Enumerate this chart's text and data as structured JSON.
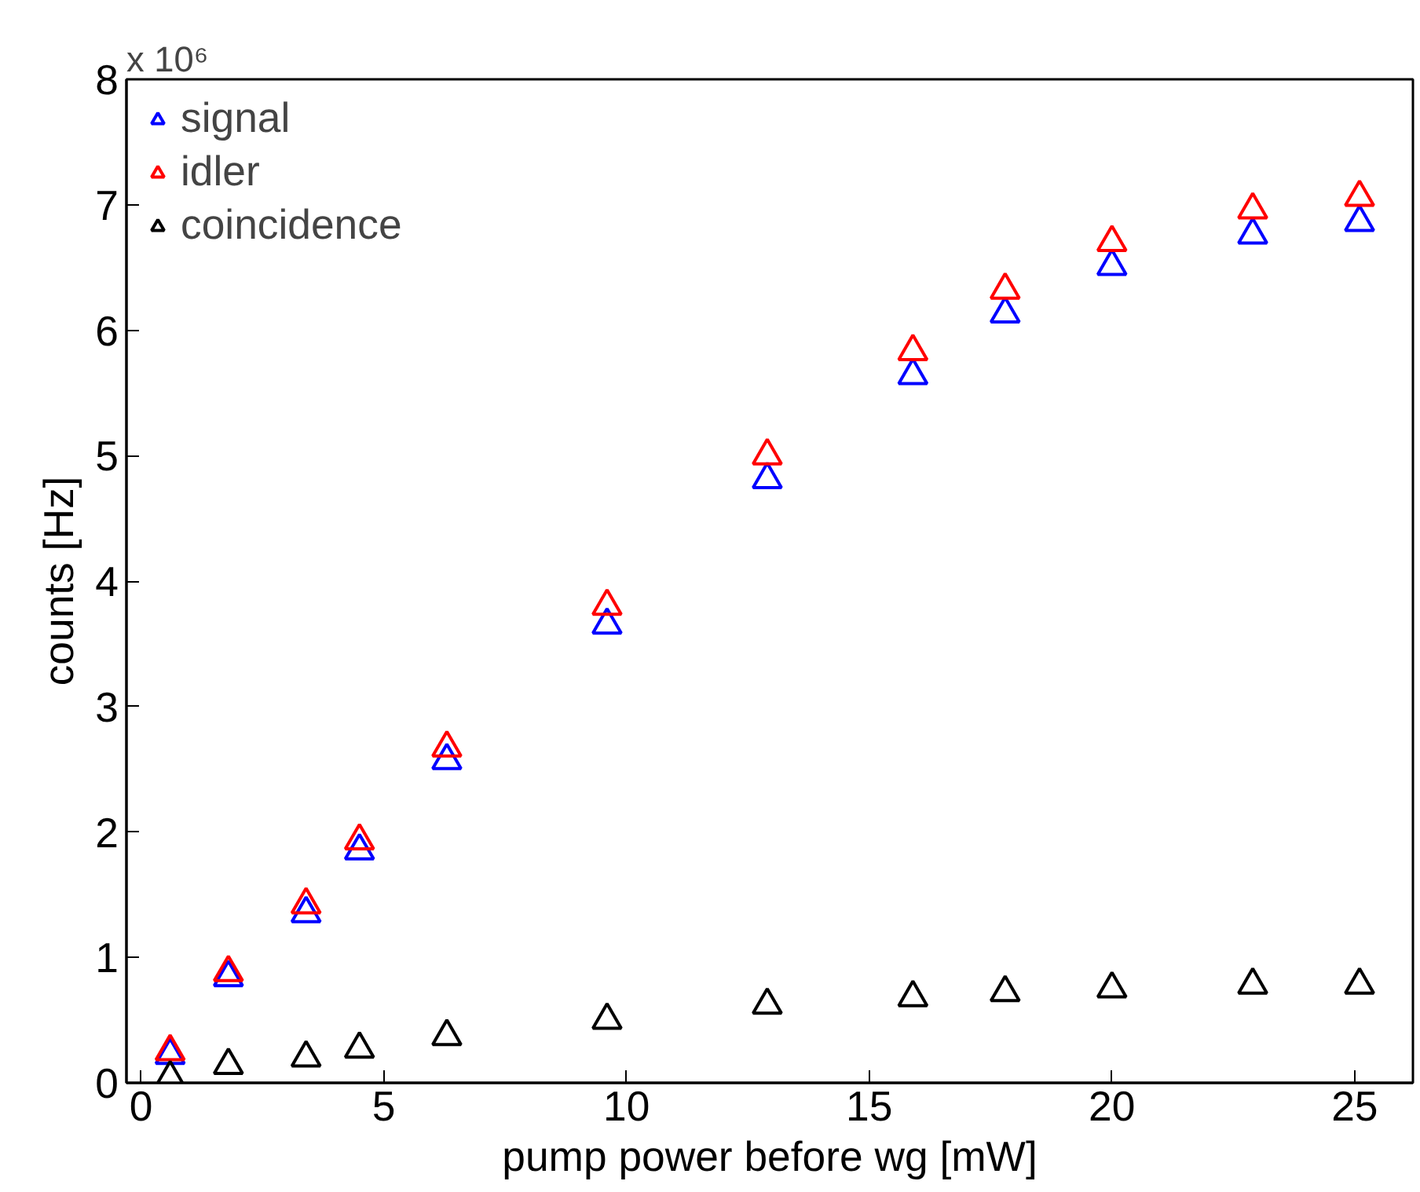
{
  "chart_data": {
    "type": "scatter",
    "xlabel": "pump power before wg [mW]",
    "ylabel": "counts [Hz]",
    "annotations": [
      "x 10⁶"
    ],
    "x": [
      0.6,
      1.8,
      3.4,
      4.5,
      6.3,
      9.6,
      12.9,
      15.9,
      17.8,
      20,
      22.9,
      25.1
    ],
    "series": [
      {
        "name": "signal",
        "color": "#0000ff",
        "values": [
          0.22,
          0.84,
          1.35,
          1.85,
          2.57,
          3.65,
          4.81,
          5.64,
          6.13,
          6.51,
          6.76,
          6.86
        ]
      },
      {
        "name": "idler",
        "color": "#ff0000",
        "values": [
          0.25,
          0.88,
          1.42,
          1.93,
          2.67,
          3.8,
          5.0,
          5.83,
          6.32,
          6.7,
          6.96,
          7.06
        ]
      },
      {
        "name": "coincidence",
        "color": "#000000",
        "values": [
          0.04,
          0.14,
          0.2,
          0.27,
          0.37,
          0.5,
          0.62,
          0.68,
          0.72,
          0.75,
          0.78,
          0.78
        ]
      }
    ],
    "marker": "triangle",
    "xlim": [
      -0.3,
      26.2
    ],
    "ylim": [
      0,
      8
    ],
    "xticks": [
      0,
      5,
      10,
      15,
      20,
      25
    ],
    "yticks": [
      0,
      1,
      2,
      3,
      4,
      5,
      6,
      7,
      8
    ],
    "grid": false,
    "legend": "top left"
  }
}
